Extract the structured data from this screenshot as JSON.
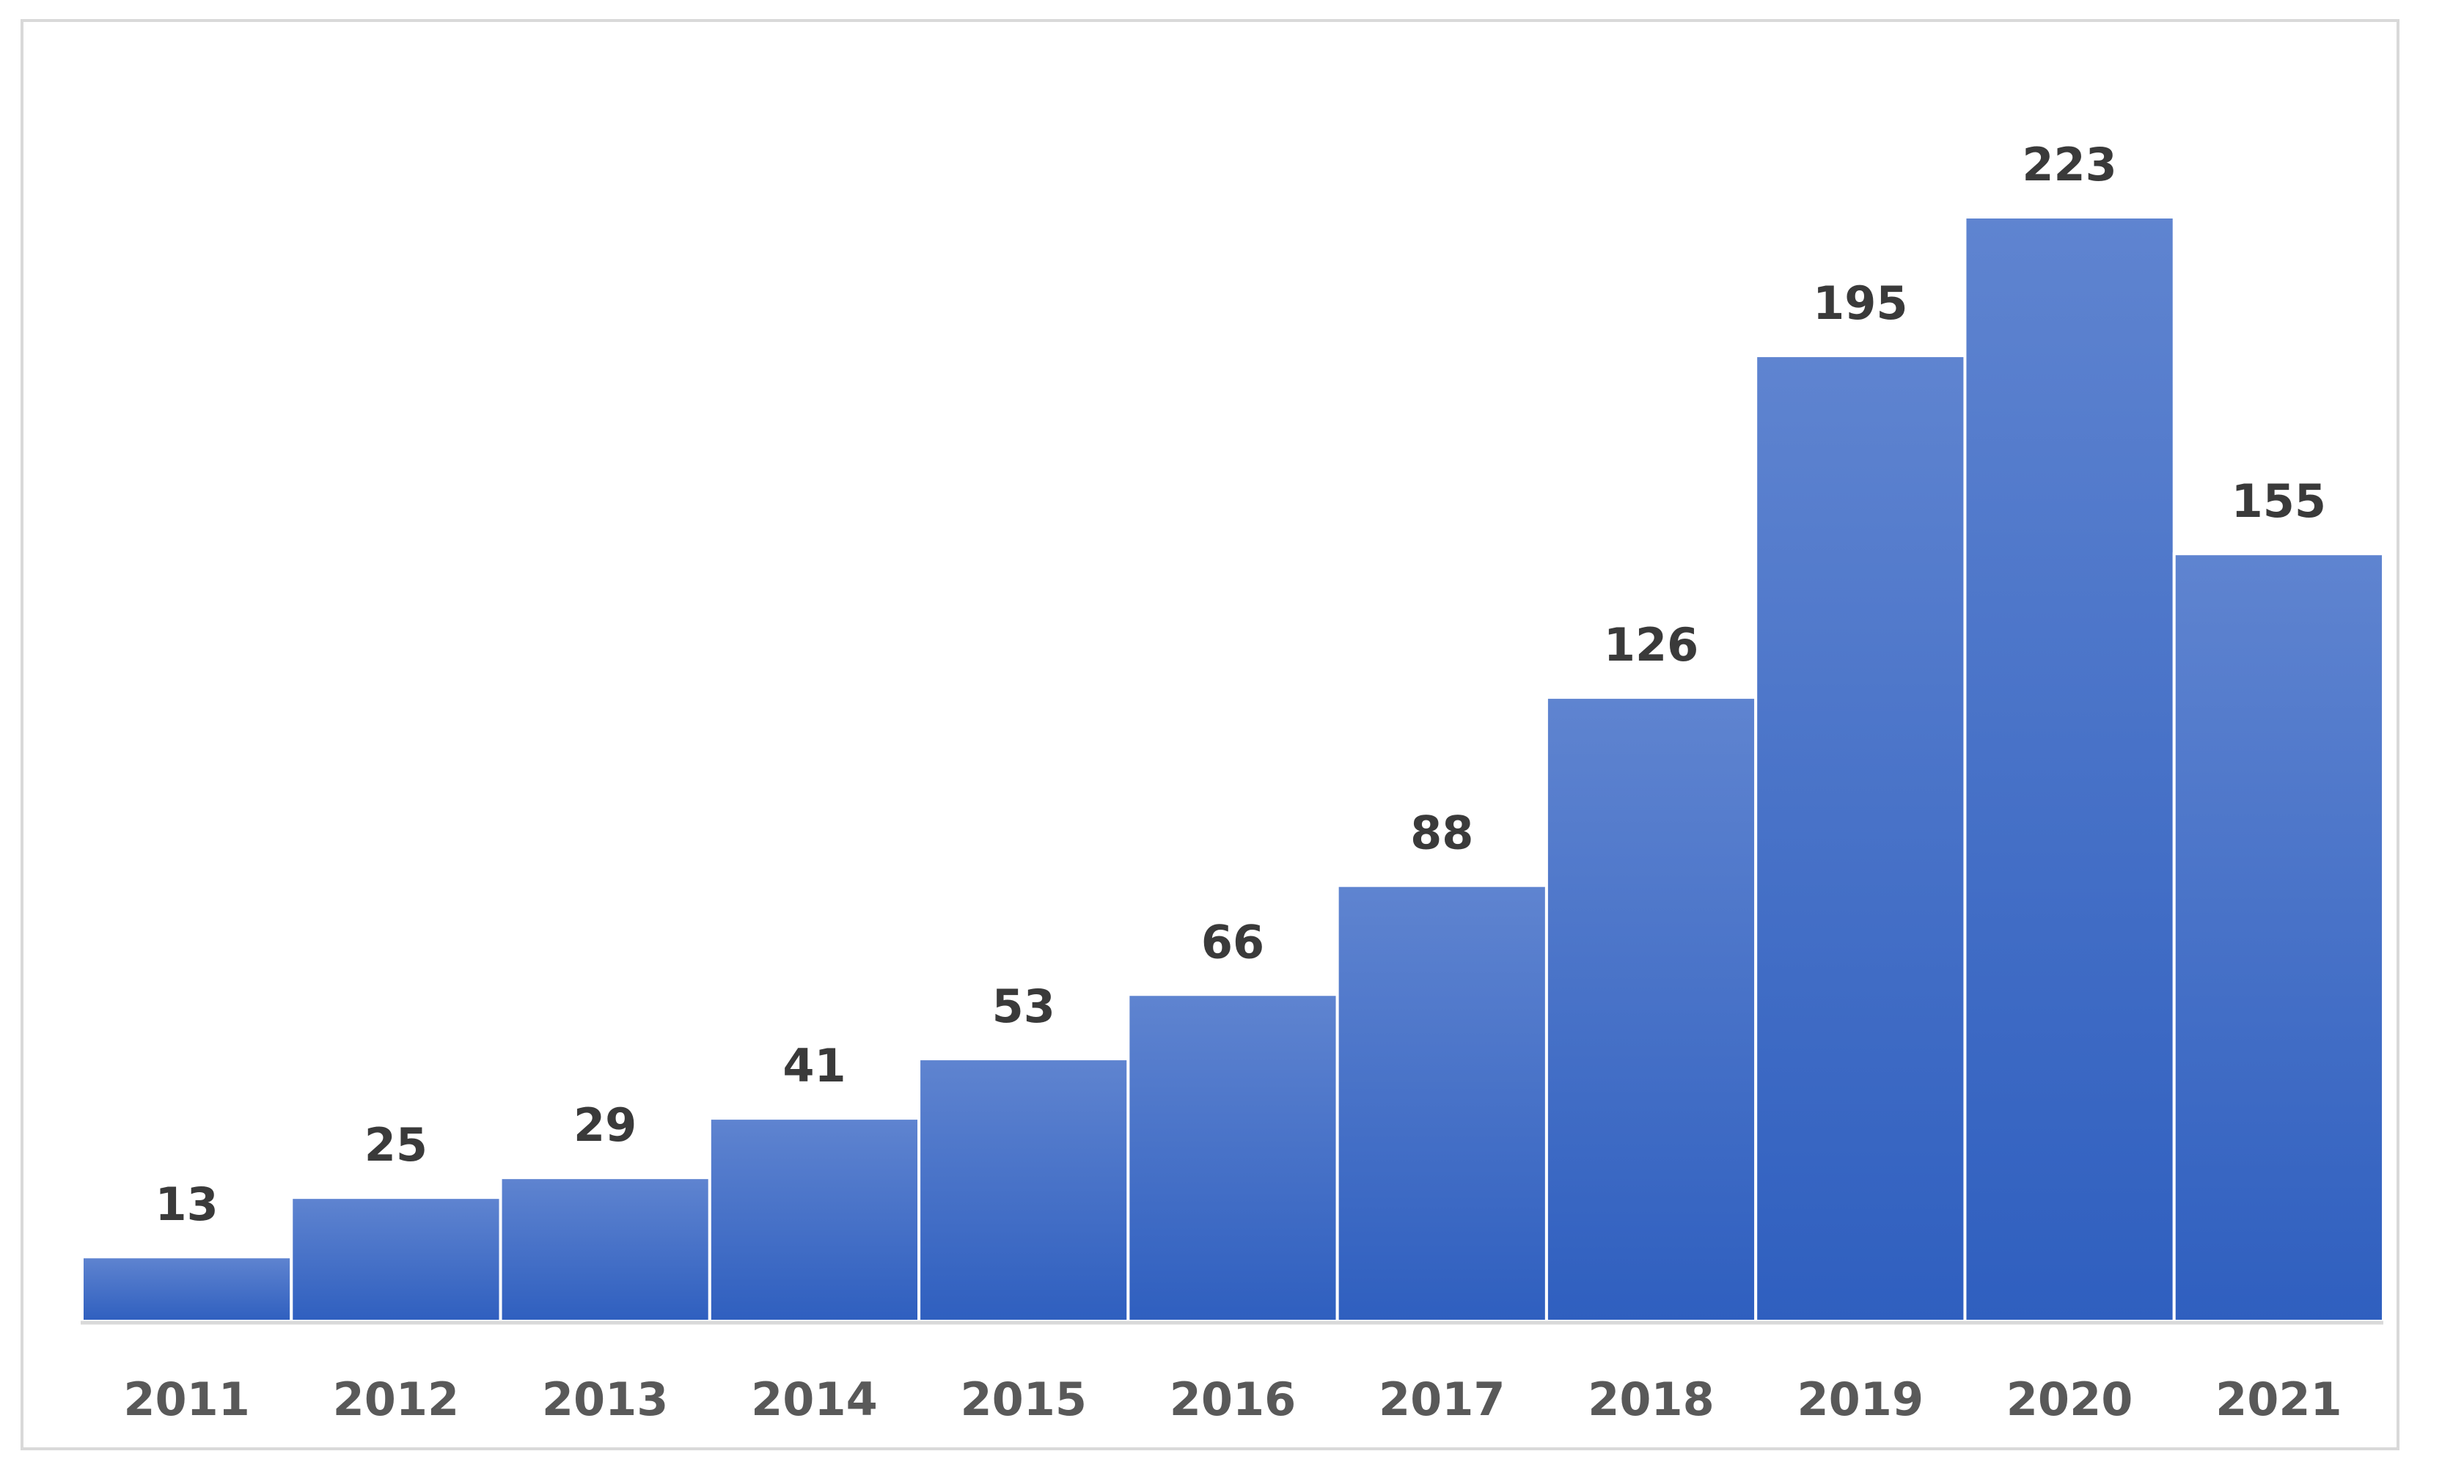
{
  "chart_data": {
    "type": "bar",
    "categories": [
      "2011",
      "2012",
      "2013",
      "2014",
      "2015",
      "2016",
      "2017",
      "2018",
      "2019",
      "2020",
      "2021"
    ],
    "values": [
      13,
      25,
      29,
      41,
      53,
      66,
      88,
      126,
      195,
      223,
      155
    ],
    "data_labels": [
      "13",
      "25",
      "29",
      "41",
      "53",
      "66",
      "88",
      "126",
      "195",
      "223",
      "155"
    ],
    "title": "",
    "xlabel": "",
    "ylabel": "",
    "ylim": [
      0,
      223
    ],
    "grid": false,
    "legend": "none",
    "colors": {
      "bar_top": "#5f84d0",
      "bar_bottom": "#2f5fbf",
      "bar_edge": "#ffffff",
      "axis": "#d9d9d9",
      "frame": "#d9d9d9"
    }
  }
}
